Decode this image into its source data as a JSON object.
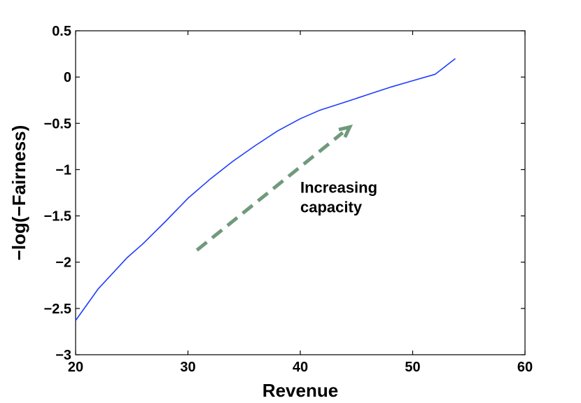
{
  "chart_data": {
    "type": "line",
    "xlabel": "Revenue",
    "ylabel": "−log(−Fairness)",
    "xlim": [
      20,
      60
    ],
    "ylim": [
      -3,
      0.5
    ],
    "xticks": [
      20,
      30,
      40,
      50,
      60
    ],
    "xtick_labels": [
      "20",
      "30",
      "40",
      "50",
      "60"
    ],
    "yticks": [
      -3,
      -2.5,
      -2,
      -1.5,
      -1,
      -0.5,
      0,
      0.5
    ],
    "ytick_labels": [
      "−3",
      "−2.5",
      "−2",
      "−1.5",
      "−1",
      "−0.5",
      "0",
      "0.5"
    ],
    "grid": false,
    "series": [
      {
        "color": "#1f3cff",
        "x": [
          20,
          22,
          24.6,
          26,
          28,
          30,
          32,
          34,
          36,
          38,
          40,
          41.7,
          44,
          46,
          48,
          50,
          52,
          53.8
        ],
        "y": [
          -2.63,
          -2.29,
          -1.95,
          -1.8,
          -1.56,
          -1.31,
          -1.1,
          -0.91,
          -0.74,
          -0.58,
          -0.45,
          -0.36,
          -0.27,
          -0.19,
          -0.11,
          -0.04,
          0.03,
          0.2
        ]
      }
    ],
    "annotations": [
      {
        "type": "arrow",
        "style": "dashed",
        "color": "#6f9a7c",
        "from": [
          30.8,
          -1.87
        ],
        "to": [
          44.4,
          -0.54
        ]
      },
      {
        "type": "text",
        "lines": [
          "Increasing",
          "capacity"
        ],
        "anchor": [
          40,
          -1.25
        ]
      }
    ]
  }
}
